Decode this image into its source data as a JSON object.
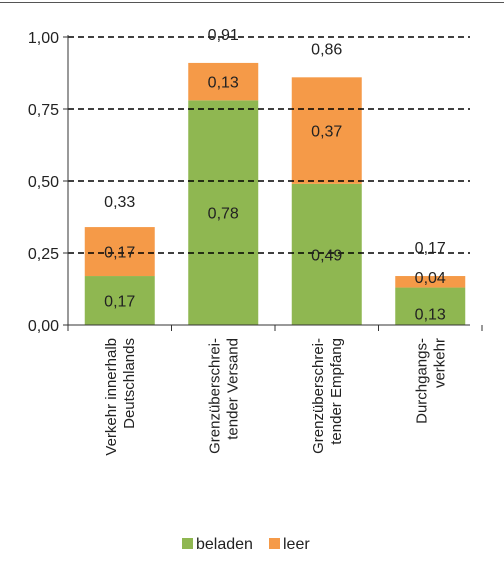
{
  "chart_data": {
    "type": "bar",
    "stacked": true,
    "categories": [
      [
        "Verkehr innerhalb",
        "Deutschlands"
      ],
      [
        "Grenzüberschrei-",
        "tender Versand"
      ],
      [
        "Grenzüberschrei-",
        "tender Empfang"
      ],
      [
        "Durchgangs-",
        "verkehr"
      ]
    ],
    "series": [
      {
        "name": "beladen",
        "color": "#8fb751",
        "values": [
          0.17,
          0.78,
          0.49,
          0.13
        ],
        "labels": [
          "0,17",
          "0,78",
          "0,49",
          "0,13"
        ]
      },
      {
        "name": "leer",
        "color": "#f59a48",
        "values": [
          0.17,
          0.13,
          0.37,
          0.04
        ],
        "labels": [
          "0,17",
          "0,13",
          "0,37",
          "0,04"
        ]
      }
    ],
    "totals": [
      0.33,
      0.91,
      0.86,
      0.17
    ],
    "total_labels": [
      "0,33",
      "0,91",
      "0,86",
      "0,17"
    ],
    "ylim": [
      0,
      1
    ],
    "yticks": [
      0,
      0.25,
      0.5,
      0.75,
      1.0
    ],
    "ytick_labels": [
      "0,00",
      "0,25",
      "0,50",
      "0,75",
      "1,00"
    ],
    "grid": "dashed-horizontal",
    "legend_position": "bottom"
  }
}
